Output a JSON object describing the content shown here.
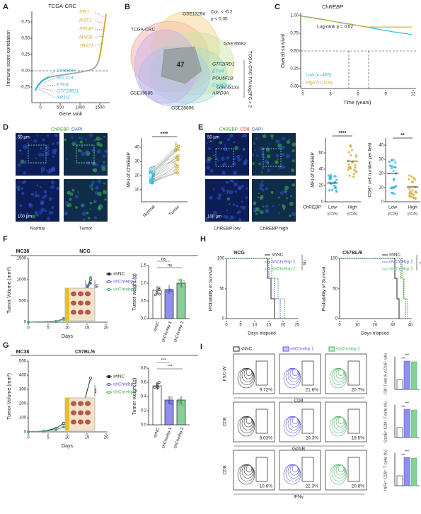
{
  "A": {
    "letter": "A",
    "title": "TCGA-CRC",
    "ylabel": "Immune score correlation",
    "xlabel": "Gene rank",
    "yticks": [
      "0.75",
      "0.50",
      "0.25",
      "0.00",
      "-0.25"
    ],
    "xticks": [
      "0",
      "500",
      "1000",
      "1500"
    ],
    "top_genes": [
      "SPI1",
      "IKZF1",
      "SP140",
      "MAFB",
      "TBX21"
    ],
    "bottom_genes": [
      "ChREBP",
      "BCL11A",
      "ETV4",
      "GTF2IRD1",
      "NR1I2"
    ]
  },
  "B": {
    "letter": "B",
    "sets": [
      "TCGA-CRC",
      "GSE13294",
      "GSE26682",
      "GSE33133",
      "GSE35896",
      "GSE39585"
    ],
    "criteria": [
      "Cor. < -0.2",
      "p < 0.05"
    ],
    "filter": "TCGA-CRC T/N log2FC > 2",
    "center": "47",
    "genes": [
      "GTF2IRD1",
      "ETV4",
      "POU5F1B",
      "ChREBP",
      "ARID3A"
    ]
  },
  "C": {
    "letter": "C",
    "title": "ChREBP",
    "ylabel": "Overall survival",
    "xlabel": "Time (years)",
    "yticks": [
      "1.00",
      "0.75",
      "0.50",
      "0.25",
      "0.00"
    ],
    "xticks": [
      "0",
      "3",
      "6",
      "9",
      "12"
    ],
    "test": "Log-rank p = 0.02",
    "legend": [
      "Low (n=465)",
      "High (n=108)"
    ]
  },
  "D": {
    "letter": "D",
    "stains": [
      "ChREBP",
      "DAPI"
    ],
    "scale_bars": [
      "50 µm",
      "100 µm"
    ],
    "groups": [
      "Normal",
      "Tumor"
    ],
    "ylabel": "MFI of ChREBP",
    "yticks": [
      "10",
      "20",
      "30",
      "40"
    ],
    "significance": "****"
  },
  "E": {
    "letter": "E",
    "stains": [
      "ChREBP",
      "CD8",
      "DAPI"
    ],
    "scale_bars": [
      "50 µm",
      "100 µm"
    ],
    "groups": [
      "ChREBP low",
      "ChREBP high"
    ],
    "mfi": {
      "ylabel": "MFI of ChREBP",
      "yticks": [
        "0",
        "20",
        "40",
        "60"
      ],
      "significance": "****",
      "xtitle": "ChREBP",
      "x": [
        "Low",
        "High"
      ],
      "n": [
        "(n=25)",
        "(n=25)"
      ]
    },
    "cd8": {
      "ylabel": "CD8⁺ cell number per field",
      "yticks": [
        "0",
        "10",
        "20",
        "30",
        "40"
      ],
      "significance": "**",
      "x": [
        "Low",
        "High"
      ],
      "n": [
        "(n=25)",
        "(n=25)"
      ]
    }
  },
  "F": {
    "letter": "F",
    "model": "MC38",
    "strain": "NCG",
    "volume": {
      "ylabel": "Tumor Volume (mm³)",
      "xlabel": "Days",
      "yticks": [
        "0",
        "500",
        "1000",
        "1500"
      ],
      "xticks": [
        "0",
        "5",
        "10",
        "15",
        "20"
      ],
      "legend": [
        "shNC",
        "shChrebp 1",
        "shChrebp 2"
      ],
      "significance": [
        "ns",
        "ns"
      ]
    },
    "weight": {
      "ylabel": "Tumor weight (g)",
      "yticks": [
        "0.0",
        "0.5",
        "1.0",
        "1.5"
      ],
      "groups": [
        "shNC",
        "shChrebp 1",
        "shChrebp 2"
      ],
      "significance": [
        "ns",
        "ns"
      ]
    }
  },
  "G": {
    "letter": "G",
    "model": "MC38",
    "strain": "C57BL/6",
    "volume": {
      "ylabel": "Tumor Volume (mm³)",
      "xlabel": "Days",
      "yticks": [
        "0",
        "100",
        "200",
        "300",
        "400",
        "500"
      ],
      "xticks": [
        "0",
        "5",
        "10",
        "15",
        "20"
      ],
      "legend": [
        "shNC",
        "shChrebp 1",
        "shChrebp 2"
      ],
      "significance": [
        "***"
      ]
    },
    "weight": {
      "ylabel": "Tumor weight (g)",
      "yticks": [
        "0.0",
        "0.2",
        "0.4",
        "0.6",
        "0.8"
      ],
      "groups": [
        "shNC",
        "shChrebp 1",
        "shChrebp 2"
      ],
      "significance": [
        "***",
        "***"
      ]
    }
  },
  "H": {
    "letter": "H",
    "ylabel": "Probability of Survival",
    "xlabel": "Days elapsed",
    "panels": [
      {
        "title": "NCG",
        "yticks": [
          "0",
          "50",
          "100"
        ],
        "xticks": [
          "0",
          "5",
          "10",
          "15",
          "20",
          "25"
        ],
        "legend": [
          "shNC",
          "shChrebp 1",
          "shChrebp 2"
        ],
        "significance": "ns"
      },
      {
        "title": "C57BL/6",
        "yticks": [
          "0",
          "50",
          "100"
        ],
        "xticks": [
          "0",
          "10",
          "20",
          "30",
          "40"
        ],
        "legend": [
          "shNC",
          "shChrebp 1",
          "shChrebp 2"
        ],
        "significance": "*"
      }
    ]
  },
  "I": {
    "letter": "I",
    "legend": [
      "shNC",
      "shChrebp 1",
      "shChrebp 2"
    ],
    "rows": [
      {
        "ylabel": "FSC-W",
        "xlabel": "CD8",
        "percents": [
          "9.72%",
          "21.6%",
          "20.7%"
        ],
        "summary": "CD8⁺ T cells (% in CD45⁺ cells)",
        "significance": [
          "***",
          "***"
        ]
      },
      {
        "ylabel": "CD8",
        "xlabel": "GzmB",
        "percents": [
          "8.03%",
          "20.3%",
          "18.5%"
        ],
        "summary": "GzmB⁺ CD8⁺ T cells (%)",
        "significance": [
          "***",
          "***"
        ]
      },
      {
        "ylabel": "CD8",
        "xlabel": "IFNγ",
        "percents": [
          "10.6%",
          "22.3%",
          "20.8%"
        ],
        "summary": "INFγ⁺ CD8⁺ T cells (%)",
        "significance": [
          "***",
          "***"
        ]
      }
    ]
  }
}
